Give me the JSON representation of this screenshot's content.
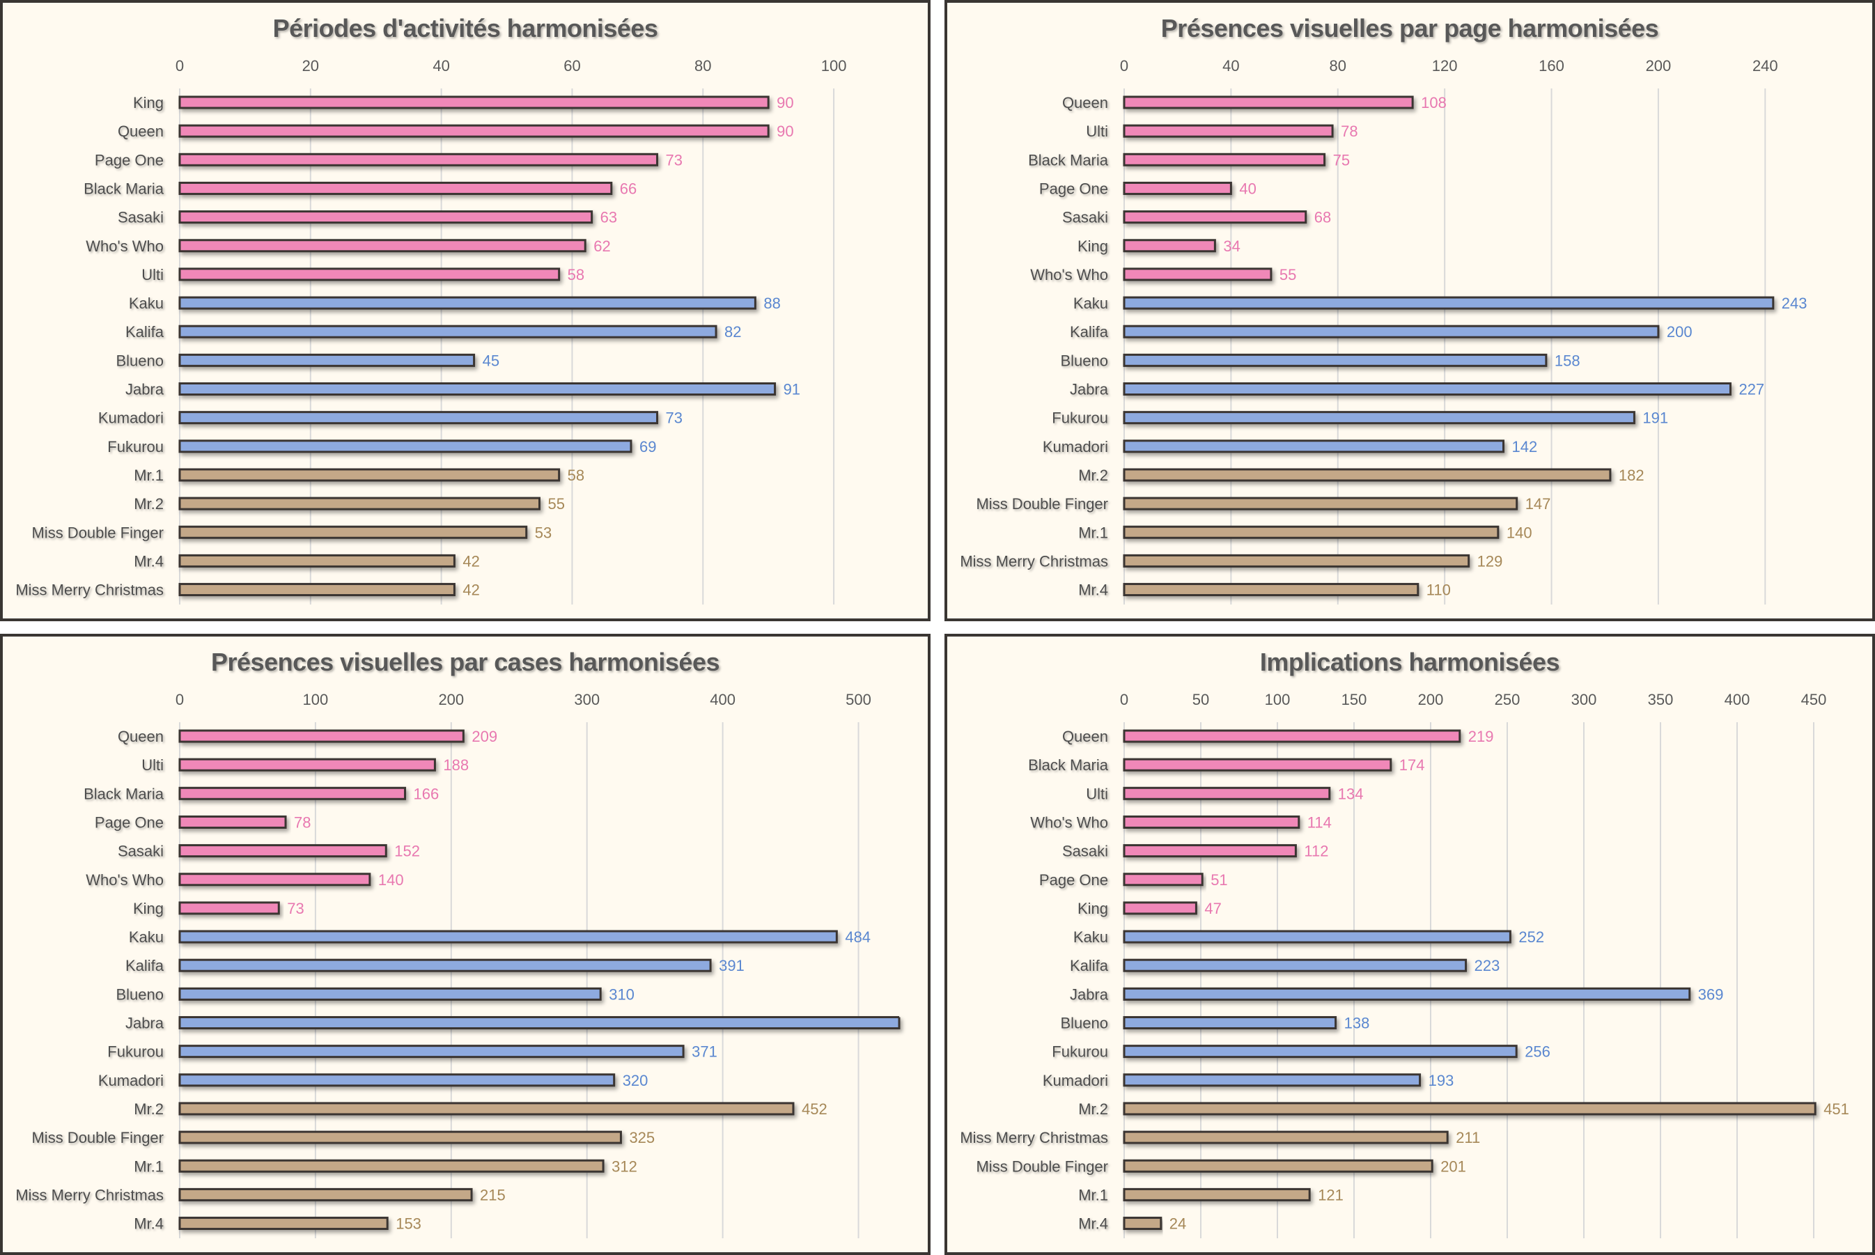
{
  "colors": {
    "group_bar": {
      "pink": "#f088b8",
      "blue": "#8eaadf",
      "tan": "#c4a888"
    },
    "group_label": {
      "pink": "#e878b0",
      "blue": "#5a87d0",
      "tan": "#a68858"
    },
    "panel_background": "#fffaf0",
    "panel_border": "#3a3633"
  },
  "chart_data": [
    {
      "type": "bar",
      "orientation": "horizontal",
      "title": "Périodes d'activités harmonisées",
      "xlabel": "",
      "ylabel": "",
      "xlim": [
        0,
        110
      ],
      "ticks": [
        0,
        20,
        40,
        60,
        80,
        100
      ],
      "tick_labels": [
        "0",
        "20",
        "40",
        "60",
        "80",
        "100"
      ],
      "grid": true,
      "axis_position": "top",
      "categories": [
        "King",
        "Queen",
        "Page One",
        "Black Maria",
        "Sasaki",
        "Who's Who",
        "Ulti",
        "Kaku",
        "Kalifa",
        "Blueno",
        "Jabra",
        "Kumadori",
        "Fukurou",
        "Mr.1",
        "Mr.2",
        "Miss Double Finger",
        "Mr.4",
        "Miss Merry Christmas"
      ],
      "values": [
        90,
        90,
        73,
        66,
        63,
        62,
        58,
        88,
        82,
        45,
        91,
        73,
        69,
        58,
        55,
        53,
        42,
        42
      ],
      "value_labels": [
        "90",
        "90",
        "73",
        "66",
        "63",
        "62",
        "58",
        "88",
        "82",
        "45",
        "91",
        "73",
        "69",
        "58",
        "55",
        "53",
        "42",
        "42"
      ],
      "groups": [
        "pink",
        "pink",
        "pink",
        "pink",
        "pink",
        "pink",
        "pink",
        "blue",
        "blue",
        "blue",
        "blue",
        "blue",
        "blue",
        "tan",
        "tan",
        "tan",
        "tan",
        "tan"
      ]
    },
    {
      "type": "bar",
      "orientation": "horizontal",
      "title": "Présences visuelles par page harmonisées",
      "xlabel": "",
      "ylabel": "",
      "xlim": [
        0,
        260
      ],
      "ticks": [
        0,
        40,
        80,
        120,
        160,
        200,
        240
      ],
      "tick_labels": [
        "0",
        "40",
        "80",
        "120",
        "160",
        "200",
        "240"
      ],
      "grid": true,
      "axis_position": "top",
      "categories": [
        "Queen",
        "Ulti",
        "Black Maria",
        "Page One",
        "Sasaki",
        "King",
        "Who's Who",
        "Kaku",
        "Kalifa",
        "Blueno",
        "Jabra",
        "Fukurou",
        "Kumadori",
        "Mr.2",
        "Miss Double Finger",
        "Mr.1",
        "Miss Merry Christmas",
        "Mr.4"
      ],
      "values": [
        108,
        78,
        75,
        40,
        68,
        34,
        55,
        243,
        200,
        158,
        227,
        191,
        142,
        182,
        147,
        140,
        129,
        110
      ],
      "value_labels": [
        "108",
        "78",
        "75",
        "40",
        "68",
        "34",
        "55",
        "243",
        "200",
        "158",
        "227",
        "191",
        "142",
        "182",
        "147",
        "140",
        "129",
        "110"
      ],
      "groups": [
        "pink",
        "pink",
        "pink",
        "pink",
        "pink",
        "pink",
        "pink",
        "blue",
        "blue",
        "blue",
        "blue",
        "blue",
        "blue",
        "tan",
        "tan",
        "tan",
        "tan",
        "tan"
      ]
    },
    {
      "type": "bar",
      "orientation": "horizontal",
      "title": "Présences visuelles par cases harmonisées",
      "xlabel": "",
      "ylabel": "",
      "xlim": [
        0,
        530
      ],
      "ticks": [
        0,
        100,
        200,
        300,
        400,
        500
      ],
      "tick_labels": [
        "0",
        "100",
        "200",
        "300",
        "400",
        "500"
      ],
      "grid": true,
      "axis_position": "top",
      "categories": [
        "Queen",
        "Ulti",
        "Black Maria",
        "Page One",
        "Sasaki",
        "Who's Who",
        "King",
        "Kaku",
        "Kalifa",
        "Blueno",
        "Jabra",
        "Fukurou",
        "Kumadori",
        "Mr.2",
        "Miss Double Finger",
        "Mr.1",
        "Miss Merry Christmas",
        "Mr.4"
      ],
      "values": [
        209,
        188,
        166,
        78,
        152,
        140,
        73,
        484,
        391,
        310,
        null,
        371,
        320,
        452,
        325,
        312,
        215,
        153
      ],
      "value_labels": [
        "209",
        "188",
        "166",
        "78",
        "152",
        "140",
        "73",
        "484",
        "391",
        "310",
        "",
        "371",
        "320",
        "452",
        "325",
        "312",
        "215",
        "153"
      ],
      "clipped": [
        false,
        false,
        false,
        false,
        false,
        false,
        false,
        false,
        false,
        false,
        true,
        false,
        false,
        false,
        false,
        false,
        false,
        false
      ],
      "groups": [
        "pink",
        "pink",
        "pink",
        "pink",
        "pink",
        "pink",
        "pink",
        "blue",
        "blue",
        "blue",
        "blue",
        "blue",
        "blue",
        "tan",
        "tan",
        "tan",
        "tan",
        "tan"
      ],
      "annotations": [
        "Jabra bar exceeds the axis maximum; its value label is not visible"
      ]
    },
    {
      "type": "bar",
      "orientation": "horizontal",
      "title": "Implications harmonisées",
      "xlabel": "",
      "ylabel": "",
      "xlim": [
        0,
        460
      ],
      "ticks": [
        0,
        50,
        100,
        150,
        200,
        250,
        300,
        350,
        400,
        450
      ],
      "tick_labels": [
        "0",
        "50",
        "100",
        "150",
        "200",
        "250",
        "300",
        "350",
        "400",
        "450"
      ],
      "grid": true,
      "axis_position": "top",
      "categories": [
        "Queen",
        "Black Maria",
        "Ulti",
        "Who's Who",
        "Sasaki",
        "Page One",
        "King",
        "Kaku",
        "Kalifa",
        "Jabra",
        "Blueno",
        "Fukurou",
        "Kumadori",
        "Mr.2",
        "Miss Merry Christmas",
        "Miss Double Finger",
        "Mr.1",
        "Mr.4"
      ],
      "values": [
        219,
        174,
        134,
        114,
        112,
        51,
        47,
        252,
        223,
        369,
        138,
        256,
        193,
        451,
        211,
        201,
        121,
        24
      ],
      "value_labels": [
        "219",
        "174",
        "134",
        "114",
        "112",
        "51",
        "47",
        "252",
        "223",
        "369",
        "138",
        "256",
        "193",
        "451",
        "211",
        "201",
        "121",
        "24"
      ],
      "groups": [
        "pink",
        "pink",
        "pink",
        "pink",
        "pink",
        "pink",
        "pink",
        "blue",
        "blue",
        "blue",
        "blue",
        "blue",
        "blue",
        "tan",
        "tan",
        "tan",
        "tan",
        "tan"
      ]
    }
  ]
}
